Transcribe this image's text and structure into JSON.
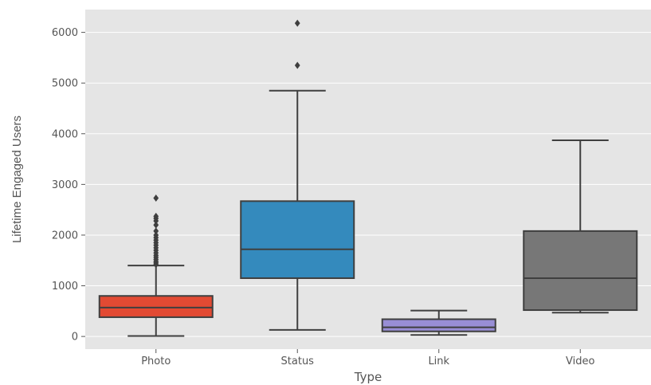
{
  "chart_data": {
    "type": "box",
    "xlabel": "Type",
    "ylabel": "Lifetime Engaged Users",
    "ylim": [
      -250,
      6450
    ],
    "yticks": [
      0,
      1000,
      2000,
      3000,
      4000,
      5000,
      6000
    ],
    "grid": true,
    "categories": [
      "Photo",
      "Status",
      "Link",
      "Video"
    ],
    "series": [
      {
        "category": "Photo",
        "color": "#E24A33",
        "whisker_low": 10,
        "q1": 380,
        "median": 570,
        "q3": 800,
        "whisker_high": 1400,
        "outliers": [
          1420,
          1450,
          1480,
          1520,
          1560,
          1600,
          1650,
          1700,
          1750,
          1800,
          1850,
          1900,
          1950,
          2000,
          2080,
          2200,
          2280,
          2330,
          2370,
          2730
        ]
      },
      {
        "category": "Status",
        "color": "#348ABD",
        "whisker_low": 130,
        "q1": 1150,
        "median": 1720,
        "q3": 2670,
        "whisker_high": 4850,
        "outliers": [
          5350,
          6180
        ]
      },
      {
        "category": "Link",
        "color": "#988ED5",
        "whisker_low": 30,
        "q1": 100,
        "median": 180,
        "q3": 340,
        "whisker_high": 510,
        "outliers": []
      },
      {
        "category": "Video",
        "color": "#777777",
        "whisker_low": 470,
        "q1": 520,
        "median": 1150,
        "q3": 2080,
        "whisker_high": 3870,
        "outliers": []
      }
    ]
  }
}
